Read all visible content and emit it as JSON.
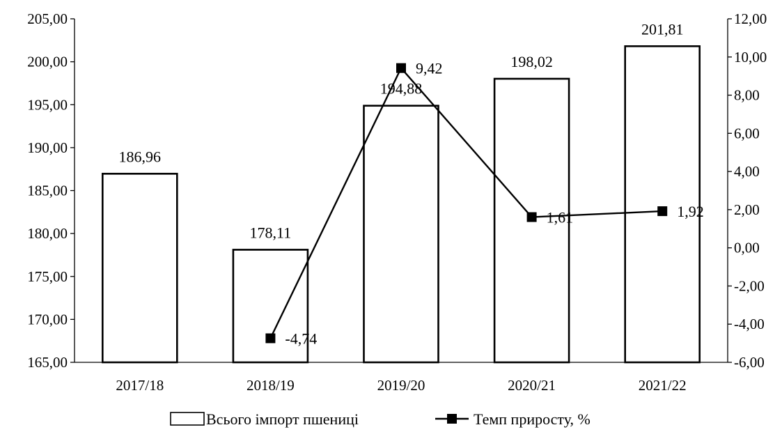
{
  "chart_data": {
    "type": "bar",
    "categories": [
      "2017/18",
      "2018/19",
      "2019/20",
      "2020/21",
      "2021/22"
    ],
    "series": [
      {
        "name": "Всього імпорт пшениці",
        "type": "bar",
        "axis": "left",
        "values": [
          186.96,
          178.11,
          194.88,
          198.02,
          201.81
        ],
        "labels": [
          "186,96",
          "178,11",
          "194,88",
          "198,02",
          "201,81"
        ]
      },
      {
        "name": "Темп приросту, %",
        "type": "line",
        "axis": "right",
        "values": [
          null,
          -4.74,
          9.42,
          1.61,
          1.92
        ],
        "labels": [
          "",
          "-4,74",
          "9,42",
          "1,61",
          "1,92"
        ]
      }
    ],
    "y_left": {
      "ylim": [
        165,
        205
      ],
      "ticks": [
        165,
        170,
        175,
        180,
        185,
        190,
        195,
        200,
        205
      ],
      "tick_labels": [
        "165,00",
        "170,00",
        "175,00",
        "180,00",
        "185,00",
        "190,00",
        "195,00",
        "200,00",
        "205,00"
      ]
    },
    "y_right": {
      "ylim": [
        -6,
        12
      ],
      "ticks": [
        -6,
        -4,
        -2,
        0,
        2,
        4,
        6,
        8,
        10,
        12
      ],
      "tick_labels": [
        "-6,00",
        "-4,00",
        "-2,00",
        "0,00",
        "2,00",
        "4,00",
        "6,00",
        "8,00",
        "10,00",
        "12,00"
      ]
    },
    "grid": false,
    "legend_position": "bottom",
    "title": "",
    "xlabel": "",
    "ylabel": ""
  }
}
